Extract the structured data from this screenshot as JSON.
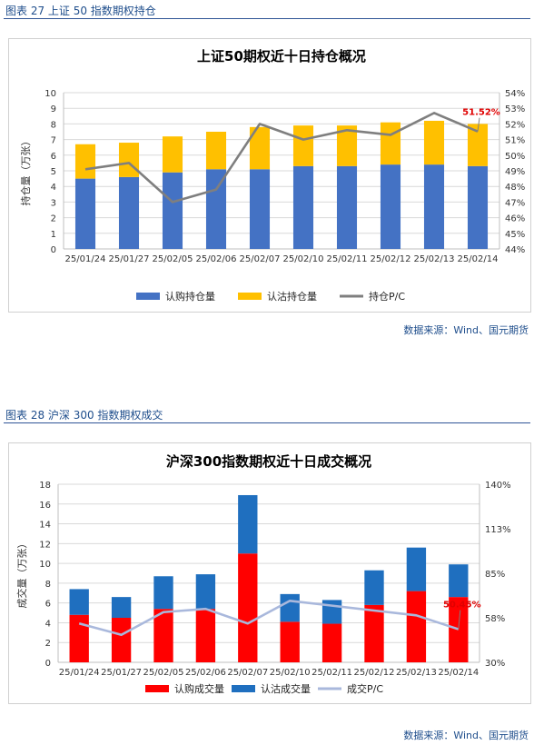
{
  "figures": [
    {
      "caption": "图表 27  上证 50 指数期权持仓",
      "source": "数据来源：Wind、国元期货",
      "chart_data": {
        "type": "bar",
        "title": "上证50期权近十日持仓概况",
        "ylabel": "持仓量（万张）",
        "categories": [
          "25/01/24",
          "25/01/27",
          "25/02/05",
          "25/02/06",
          "25/02/07",
          "25/02/10",
          "25/02/11",
          "25/02/12",
          "25/02/13",
          "25/02/14"
        ],
        "series": [
          {
            "name": "认购持仓量",
            "kind": "bar",
            "axis": "left",
            "color": "#4472c4",
            "values": [
              4.5,
              4.6,
              4.9,
              5.1,
              5.1,
              5.3,
              5.3,
              5.4,
              5.4,
              5.3
            ]
          },
          {
            "name": "认沽持仓量",
            "kind": "bar",
            "axis": "left",
            "color": "#ffc000",
            "values": [
              2.2,
              2.2,
              2.3,
              2.4,
              2.7,
              2.6,
              2.6,
              2.7,
              2.8,
              2.7
            ]
          },
          {
            "name": "持仓P/C",
            "kind": "line",
            "axis": "right",
            "color": "#7f7f7f",
            "values": [
              49.1,
              49.5,
              47.0,
              47.8,
              52.0,
              51.0,
              51.6,
              51.3,
              52.7,
              51.52
            ]
          }
        ],
        "ylim": [
          0,
          10
        ],
        "yticks": [
          "0",
          "1",
          "2",
          "3",
          "4",
          "5",
          "6",
          "7",
          "8",
          "9",
          "10"
        ],
        "y2lim": [
          44,
          54
        ],
        "y2ticks": [
          "44%",
          "45%",
          "46%",
          "47%",
          "48%",
          "49%",
          "50%",
          "51%",
          "52%",
          "53%",
          "54%"
        ],
        "annotation": "51.52%",
        "grid": true,
        "legend": "bottom"
      }
    },
    {
      "caption": "图表 28  沪深 300 指数期权成交",
      "source": "数据来源：Wind、国元期货",
      "chart_data": {
        "type": "bar",
        "title": "沪深300指数期权近十日成交概况",
        "ylabel": "成交量（万张）",
        "categories": [
          "25/01/24",
          "25/01/27",
          "25/02/05",
          "25/02/06",
          "25/02/07",
          "25/02/10",
          "25/02/11",
          "25/02/12",
          "25/02/13",
          "25/02/14"
        ],
        "series": [
          {
            "name": "认购成交量",
            "kind": "bar",
            "axis": "left",
            "color": "#ff0000",
            "values": [
              4.8,
              4.5,
              5.4,
              5.4,
              11.0,
              4.1,
              3.9,
              5.8,
              7.2,
              6.6
            ]
          },
          {
            "name": "认沽成交量",
            "kind": "bar",
            "axis": "left",
            "color": "#1f6fbf",
            "values": [
              2.6,
              2.1,
              3.3,
              3.5,
              5.9,
              2.8,
              2.4,
              3.5,
              4.4,
              3.3
            ]
          },
          {
            "name": "成交P/C",
            "kind": "line",
            "axis": "right",
            "color": "#a9b8dc",
            "values": [
              54,
              47,
              61,
              63,
              54,
              68,
              65,
              62,
              59,
              50.45
            ]
          }
        ],
        "ylim": [
          0,
          18
        ],
        "yticks": [
          "0",
          "2",
          "4",
          "6",
          "8",
          "10",
          "12",
          "14",
          "16",
          "18"
        ],
        "y2lim": [
          30,
          140
        ],
        "y2ticks": [
          "30%",
          "58%",
          "85%",
          "113%",
          "140%"
        ],
        "annotation": "50.45%",
        "grid": true,
        "legend": "bottom"
      }
    }
  ]
}
